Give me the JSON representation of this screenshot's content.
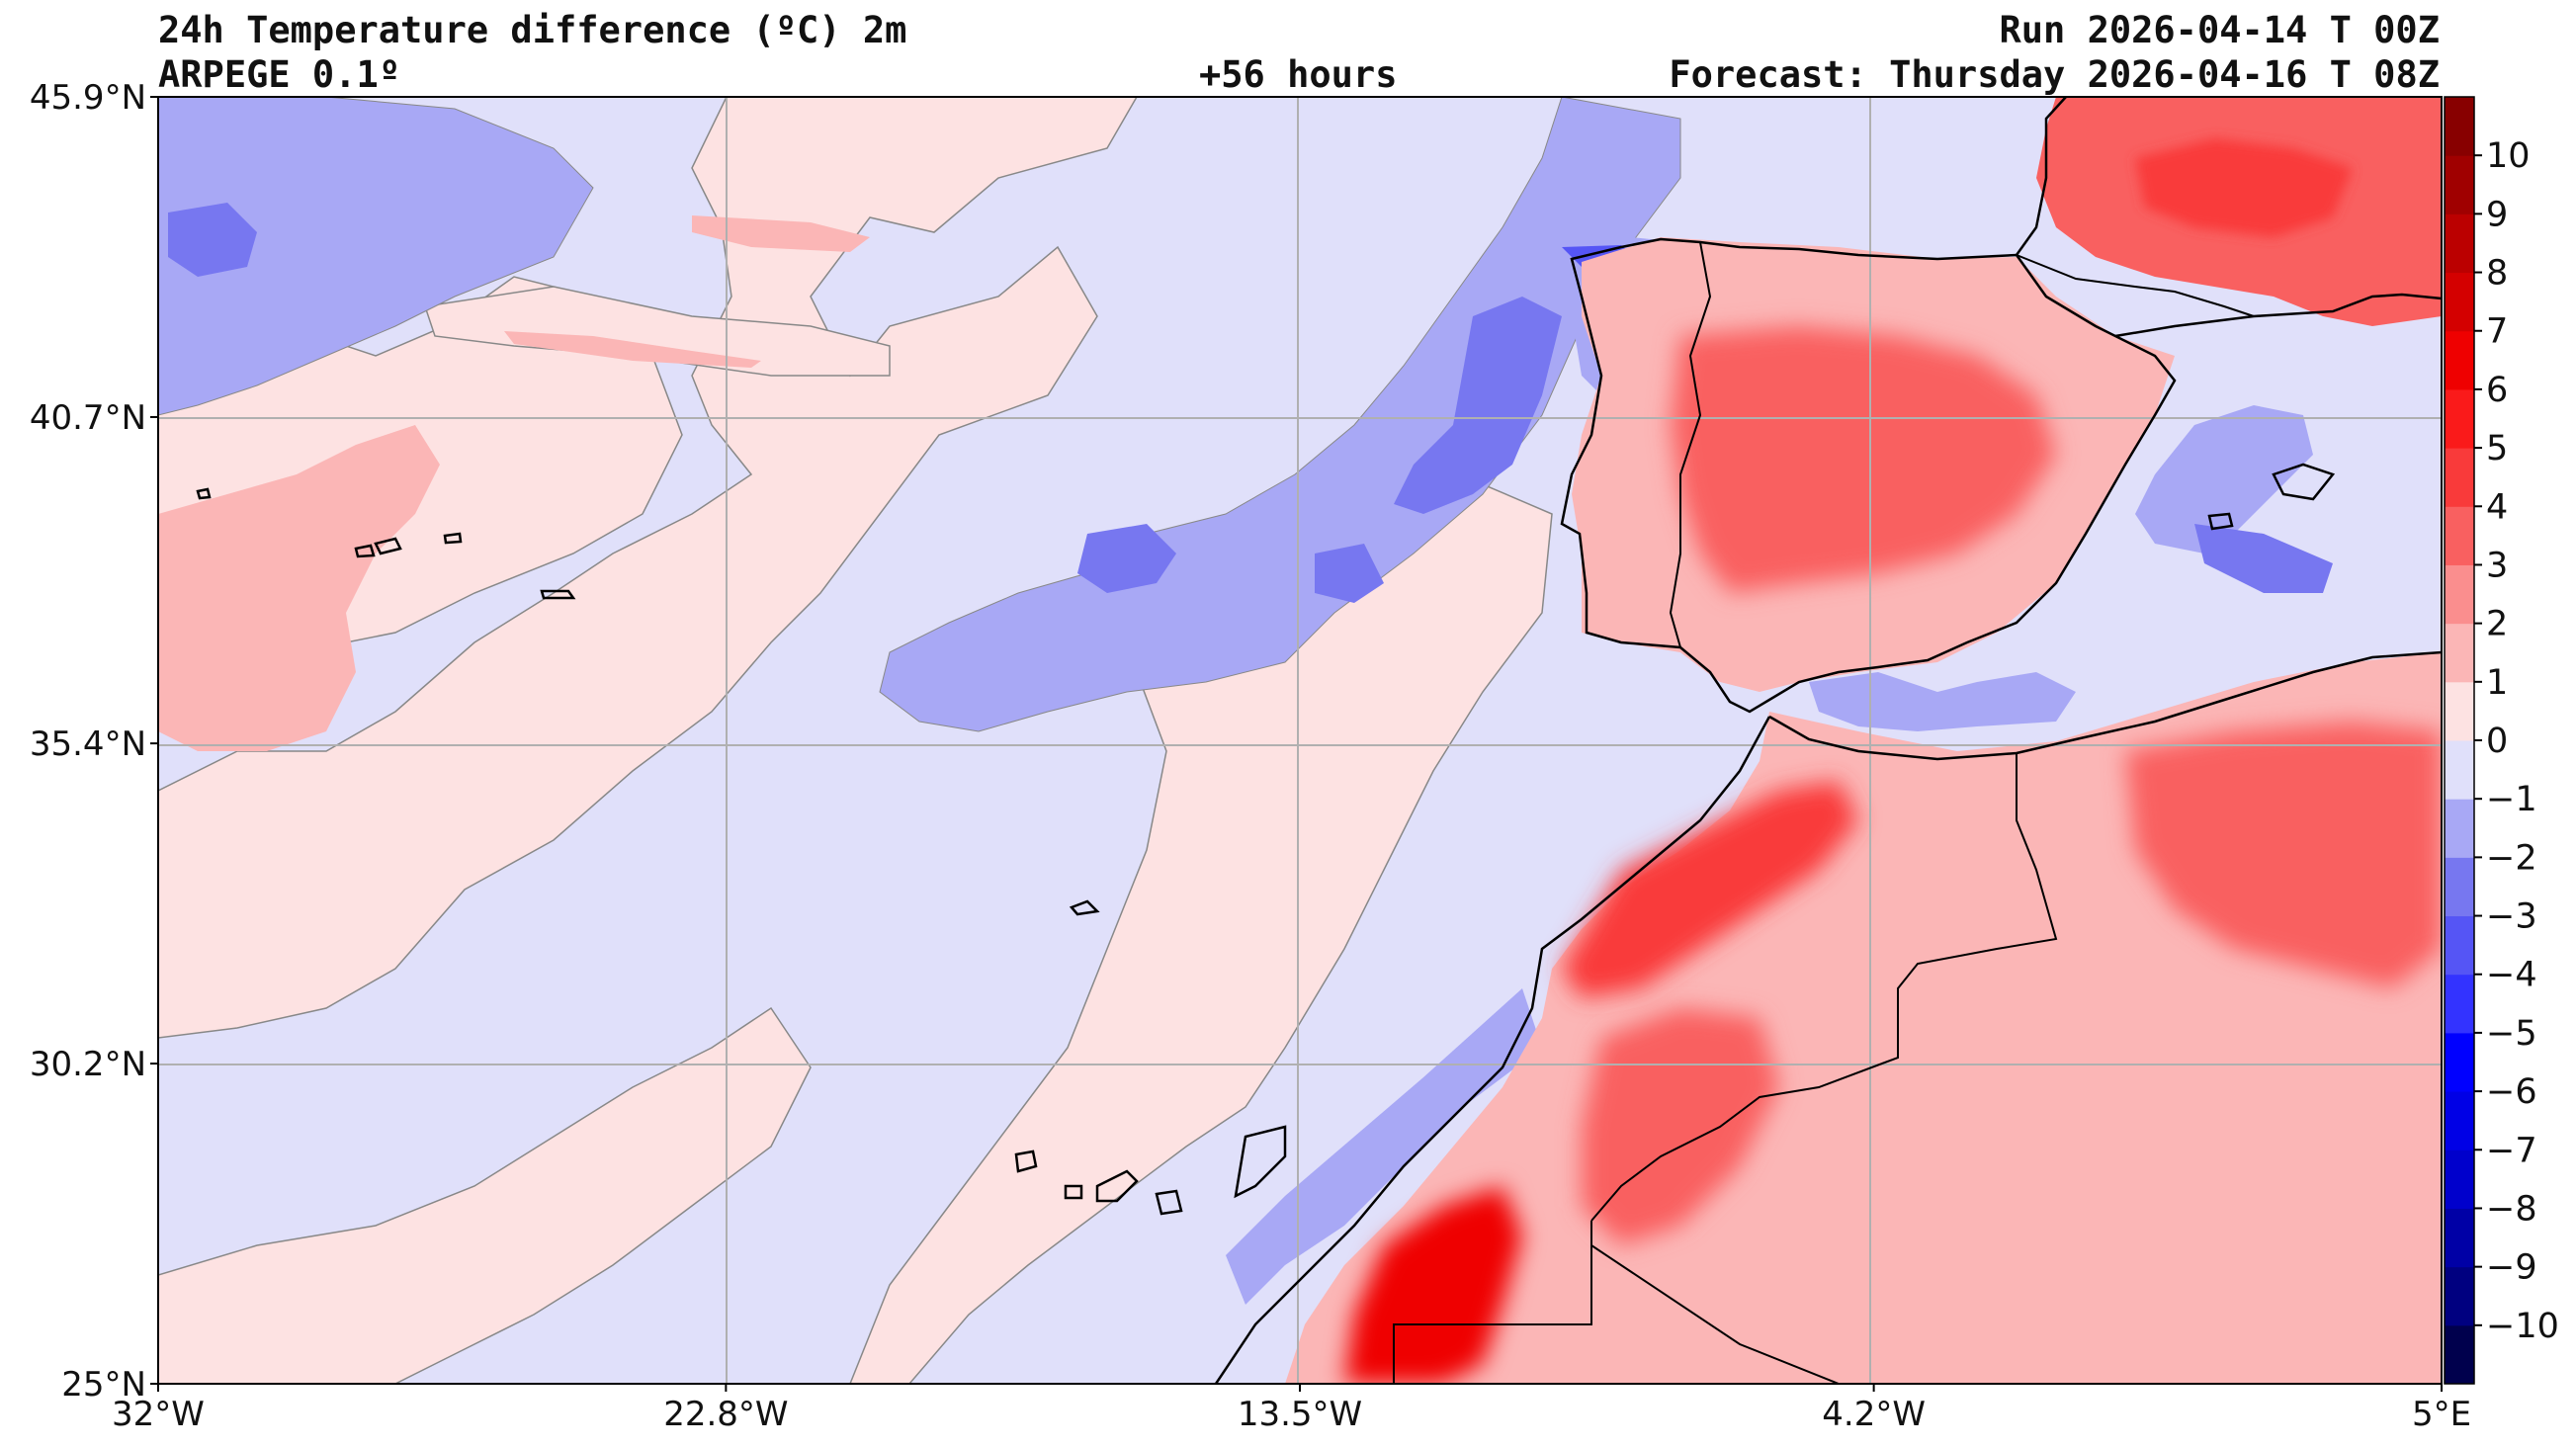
{
  "header": {
    "title": "24h Temperature difference (ºC) 2m",
    "model": "ARPEGE 0.1º",
    "lead": "+56 hours",
    "run": "Run 2026-04-14 T 00Z",
    "forecast": "Forecast: Thursday 2026-04-16 T 08Z"
  },
  "map": {
    "lon_range": [
      -32,
      5
    ],
    "lat_range": [
      25,
      45.9
    ],
    "lon_ticks": [
      {
        "value": -32,
        "label": "32°W"
      },
      {
        "value": -22.8,
        "label": "22.8°W"
      },
      {
        "value": -13.5,
        "label": "13.5°W"
      },
      {
        "value": -4.2,
        "label": "4.2°W"
      },
      {
        "value": 5,
        "label": "5°E"
      }
    ],
    "lat_ticks": [
      {
        "value": 45.9,
        "label": "45.9°N"
      },
      {
        "value": 40.7,
        "label": "40.7°N"
      },
      {
        "value": 35.4,
        "label": "35.4°N"
      },
      {
        "value": 30.2,
        "label": "30.2°N"
      },
      {
        "value": 25,
        "label": "25°N"
      }
    ]
  },
  "colorbar": {
    "levels": [
      -11,
      -10,
      -9,
      -8,
      -7,
      -6,
      -5,
      -4,
      -3,
      -2,
      -1,
      0,
      1,
      2,
      3,
      4,
      5,
      6,
      7,
      8,
      9,
      10,
      11
    ],
    "colors": [
      "#00004d",
      "#000080",
      "#0000a6",
      "#0000cc",
      "#0000e6",
      "#0000ff",
      "#3333ff",
      "#5555f5",
      "#7777f0",
      "#a8a8f5",
      "#e0e0fa",
      "#fde2e2",
      "#fbb6b6",
      "#fa8e8e",
      "#f96060",
      "#f93a3a",
      "#fa1a1a",
      "#ef0000",
      "#d40000",
      "#bb0000",
      "#a00000",
      "#880000"
    ],
    "labels": [
      {
        "value": -10,
        "label": "−10"
      },
      {
        "value": -9,
        "label": "−9"
      },
      {
        "value": -8,
        "label": "−8"
      },
      {
        "value": -7,
        "label": "−7"
      },
      {
        "value": -6,
        "label": "−6"
      },
      {
        "value": -5,
        "label": "−5"
      },
      {
        "value": -4,
        "label": "−4"
      },
      {
        "value": -3,
        "label": "−3"
      },
      {
        "value": -2,
        "label": "−2"
      },
      {
        "value": -1,
        "label": "−1"
      },
      {
        "value": 0,
        "label": "0"
      },
      {
        "value": 1,
        "label": "1"
      },
      {
        "value": 2,
        "label": "2"
      },
      {
        "value": 3,
        "label": "3"
      },
      {
        "value": 4,
        "label": "4"
      },
      {
        "value": 5,
        "label": "5"
      },
      {
        "value": 6,
        "label": "6"
      },
      {
        "value": 7,
        "label": "7"
      },
      {
        "value": 8,
        "label": "8"
      },
      {
        "value": 9,
        "label": "9"
      },
      {
        "value": 10,
        "label": "10"
      }
    ]
  }
}
